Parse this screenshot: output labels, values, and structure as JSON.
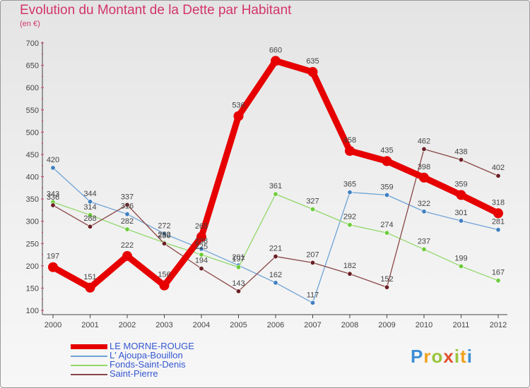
{
  "chart_data": {
    "type": "line",
    "title": "Evolution du Montant de la Dette par Habitant",
    "subtitle": "(en €)",
    "x": [
      "2000",
      "2001",
      "2002",
      "2003",
      "2004",
      "2005",
      "2006",
      "2007",
      "2008",
      "2009",
      "2010",
      "2011",
      "2012"
    ],
    "ylim": [
      100,
      700
    ],
    "yticks": [
      100,
      150,
      200,
      250,
      300,
      350,
      400,
      450,
      500,
      550,
      600,
      650,
      700
    ],
    "grid": false,
    "legend_position": "bottom-left",
    "series": [
      {
        "name": "LE MORNE-ROUGE",
        "color": "#e60000",
        "width": 9,
        "marker": 7,
        "values": [
          197,
          151,
          222,
          156,
          265,
          536,
          660,
          635,
          458,
          435,
          398,
          359,
          318
        ]
      },
      {
        "name": "L' Ajoupa-Bouillon",
        "color": "#6fa3d6",
        "width": 1.3,
        "marker": 3.2,
        "dot": "#3f7fc0",
        "values": [
          420,
          344,
          316,
          272,
          238,
          201,
          162,
          117,
          365,
          359,
          322,
          301,
          281
        ]
      },
      {
        "name": "Fonds-Saint-Denis",
        "color": "#92d86a",
        "width": 1.3,
        "marker": 3.2,
        "dot": "#6ccc3a",
        "values": [
          343,
          314,
          282,
          252,
          225,
          197,
          361,
          327,
          292,
          274,
          237,
          199,
          167
        ]
      },
      {
        "name": "Saint-Pierre",
        "color": "#8a4646",
        "width": 1.3,
        "marker": 3.2,
        "dot": "#6a1f24",
        "values": [
          336,
          288,
          337,
          250,
          194,
          143,
          221,
          207,
          182,
          152,
          462,
          438,
          402
        ]
      }
    ]
  },
  "brand": {
    "text": "Proxiti",
    "colors": [
      "#3d8fd6",
      "#f0a21f",
      "#9ac43a",
      "#e0502f",
      "#9ac43a",
      "#f0a21f",
      "#3d8fd6"
    ]
  }
}
